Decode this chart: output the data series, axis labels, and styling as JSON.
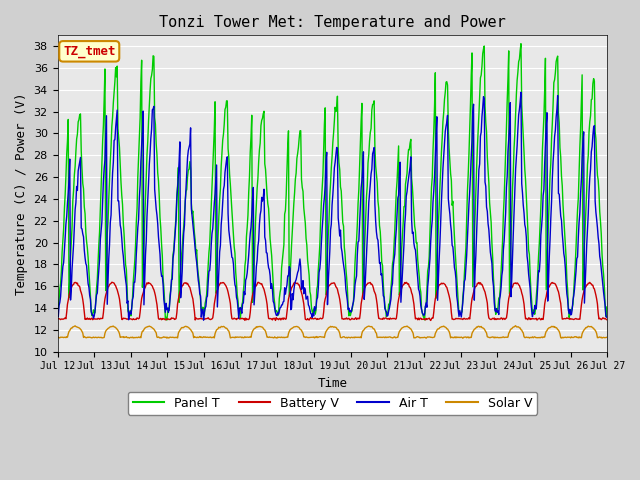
{
  "title": "Tonzi Tower Met: Temperature and Power",
  "xlabel": "Time",
  "ylabel": "Temperature (C) / Power (V)",
  "ylim": [
    10,
    39
  ],
  "yticks": [
    10,
    12,
    14,
    16,
    18,
    20,
    22,
    24,
    26,
    28,
    30,
    32,
    34,
    36,
    38
  ],
  "xtick_labels": [
    "Jul 12",
    "Jul 13",
    "Jul 14",
    "Jul 15",
    "Jul 16",
    "Jul 17",
    "Jul 18",
    "Jul 19",
    "Jul 20",
    "Jul 21",
    "Jul 22",
    "Jul 23",
    "Jul 24",
    "Jul 25",
    "Jul 26",
    "Jul 27"
  ],
  "legend_labels": [
    "Panel T",
    "Battery V",
    "Air T",
    "Solar V"
  ],
  "legend_colors": [
    "#00cc00",
    "#cc0000",
    "#0000cc",
    "#cc8800"
  ],
  "panel_color": "#00cc00",
  "battery_color": "#cc0000",
  "air_color": "#0000cc",
  "solar_color": "#cc8800",
  "axes_bg": "#e8e8e8",
  "annotation_text": "TZ_tmet",
  "annotation_bg": "#ffffcc",
  "annotation_border": "#cc8800",
  "annotation_text_color": "#cc0000",
  "n_days": 15,
  "pts_per_day": 48,
  "panel_day_peaks": [
    32,
    36,
    37,
    27,
    33,
    32,
    30,
    33,
    33,
    29,
    35,
    38,
    38,
    37,
    35
  ],
  "air_day_peaks": [
    28,
    32,
    33,
    30,
    28,
    25,
    18,
    29,
    29,
    28,
    32,
    34,
    34,
    33,
    31
  ],
  "panel_night_min": 13.5,
  "air_night_min": 13.5,
  "battery_base": 13.0,
  "battery_peak": 16.3,
  "solar_base": 11.3,
  "solar_peak": 12.3
}
